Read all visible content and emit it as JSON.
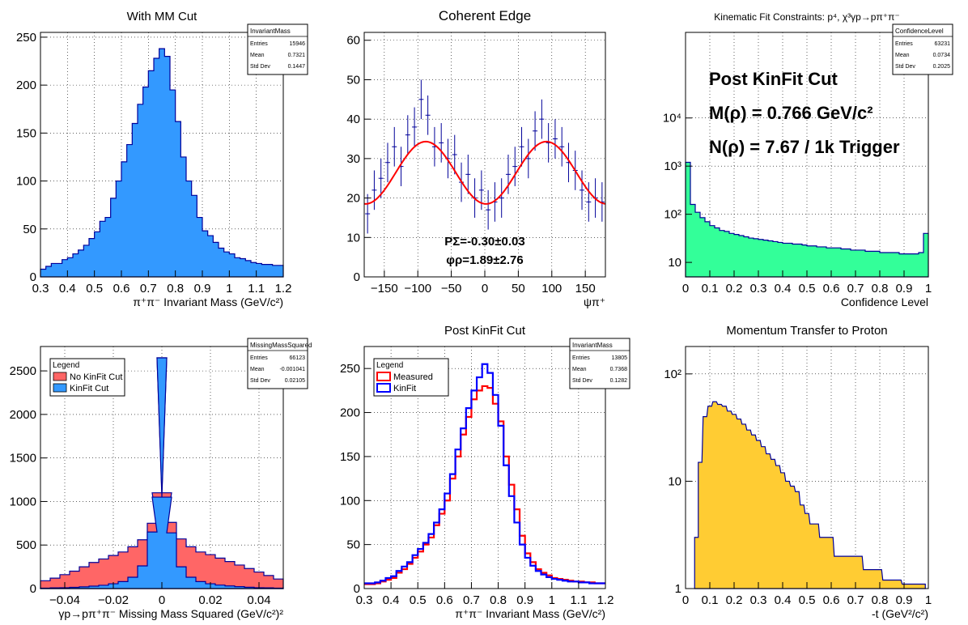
{
  "page": {
    "background": "#ffffff"
  },
  "chart_data": [
    {
      "id": "p1",
      "type": "bar",
      "title": "With MM Cut",
      "xlabel": "π⁺π⁻ Invariant Mass (GeV/c²)",
      "ylabel": "",
      "xlim": [
        0.3,
        1.2
      ],
      "ylim": [
        0,
        255
      ],
      "xticks": [
        0.3,
        0.4,
        0.5,
        0.6,
        0.7,
        0.8,
        0.9,
        1.0,
        1.1,
        1.2
      ],
      "xtick_labels": [
        "0.3",
        "0.4",
        "0.5",
        "0.6",
        "0.7",
        "0.8",
        "0.9",
        "1",
        "1.1",
        "1.2"
      ],
      "yticks": [
        0,
        50,
        100,
        150,
        200,
        250
      ],
      "ytick_labels": [
        "0",
        "50",
        "100",
        "150",
        "200",
        "250"
      ],
      "grid": true,
      "stats": {
        "name": "InvariantMass",
        "rows": [
          [
            "Entries",
            "15946"
          ],
          [
            "Mean",
            "0.7321"
          ],
          [
            "Std Dev",
            "0.1447"
          ]
        ],
        "placement": "top-right"
      },
      "series": [
        {
          "fill": "#3399ff",
          "line": "#000099",
          "x": [
            0.31,
            0.33,
            0.35,
            0.37,
            0.39,
            0.41,
            0.43,
            0.45,
            0.47,
            0.49,
            0.51,
            0.53,
            0.55,
            0.57,
            0.59,
            0.61,
            0.63,
            0.65,
            0.67,
            0.69,
            0.71,
            0.73,
            0.75,
            0.77,
            0.79,
            0.81,
            0.83,
            0.85,
            0.87,
            0.89,
            0.91,
            0.93,
            0.95,
            0.97,
            0.99,
            1.01,
            1.03,
            1.05,
            1.07,
            1.09,
            1.11,
            1.13,
            1.15,
            1.17,
            1.19
          ],
          "values": [
            8,
            11,
            14,
            14,
            18,
            20,
            24,
            28,
            33,
            40,
            47,
            58,
            62,
            82,
            100,
            120,
            138,
            160,
            180,
            198,
            215,
            228,
            238,
            230,
            195,
            162,
            125,
            100,
            85,
            62,
            48,
            43,
            36,
            30,
            26,
            24,
            20,
            19,
            17,
            15,
            14,
            13,
            13,
            12,
            12
          ]
        }
      ]
    },
    {
      "id": "p2",
      "type": "scatter",
      "title": "Coherent Edge",
      "xlabel": "ψπ⁺",
      "ylabel": "",
      "xlim": [
        -180,
        180
      ],
      "ylim": [
        0,
        62
      ],
      "xticks": [
        -150,
        -100,
        -50,
        0,
        50,
        100,
        150
      ],
      "xtick_labels": [
        "−150",
        "−100",
        "−50",
        "0",
        "50",
        "100",
        "150"
      ],
      "yticks": [
        0,
        10,
        20,
        30,
        40,
        50,
        60
      ],
      "ytick_labels": [
        "0",
        "10",
        "20",
        "30",
        "40",
        "50",
        "60"
      ],
      "grid": true,
      "annotations": [
        "PΣ=-0.30±0.03",
        "φρ=1.89±2.76"
      ],
      "points": {
        "color": "#000099",
        "errbar": 5,
        "x": [
          -175,
          -165,
          -155,
          -145,
          -135,
          -125,
          -115,
          -105,
          -95,
          -85,
          -75,
          -65,
          -55,
          -45,
          -35,
          -25,
          -15,
          -5,
          5,
          15,
          25,
          35,
          45,
          55,
          65,
          75,
          85,
          95,
          105,
          115,
          125,
          135,
          145,
          155,
          165,
          175
        ],
        "y": [
          16,
          22,
          25,
          29,
          33,
          28,
          36,
          38,
          45,
          41,
          33,
          34,
          30,
          31,
          24,
          26,
          20,
          22,
          17,
          19,
          20,
          26,
          28,
          33,
          30,
          37,
          40,
          34,
          35,
          33,
          29,
          27,
          22,
          19,
          20,
          19
        ]
      },
      "fit": {
        "color": "#ff0000",
        "offset": 26.4,
        "amplitude": 7.9,
        "phase_deg": 1.89
      }
    },
    {
      "id": "p3",
      "type": "bar",
      "title": "Kinematic Fit Constraints: p⁴, χ³γp→pπ⁺π⁻",
      "xlabel": "Confidence Level",
      "ylabel": "",
      "log_y": true,
      "xlim": [
        0,
        1
      ],
      "ylim": [
        5,
        600000
      ],
      "xticks": [
        0,
        0.1,
        0.2,
        0.3,
        0.4,
        0.5,
        0.6,
        0.7,
        0.8,
        0.9,
        1.0
      ],
      "xtick_labels": [
        "0",
        "0.1",
        "0.2",
        "0.3",
        "0.4",
        "0.5",
        "0.6",
        "0.7",
        "0.8",
        "0.9",
        "1"
      ],
      "yticks": [
        10,
        100,
        1000,
        10000
      ],
      "ytick_labels": [
        "10",
        "10²",
        "10³",
        "10⁴"
      ],
      "grid": true,
      "annotations": [
        "Post KinFit Cut",
        "M(ρ) = 0.766 GeV/c²",
        "N(ρ) = 7.67 / 1k Trigger"
      ],
      "stats": {
        "name": "ConfidenceLevel",
        "rows": [
          [
            "Entries",
            "63231"
          ],
          [
            "Mean",
            "0.0734"
          ],
          [
            "Std Dev",
            "0.2025"
          ]
        ],
        "placement": "top-right"
      },
      "series": [
        {
          "fill": "#33ff99",
          "line": "#000099",
          "x": [
            0.01,
            0.03,
            0.05,
            0.07,
            0.09,
            0.11,
            0.13,
            0.15,
            0.17,
            0.19,
            0.21,
            0.23,
            0.25,
            0.27,
            0.29,
            0.31,
            0.33,
            0.35,
            0.37,
            0.39,
            0.41,
            0.43,
            0.45,
            0.47,
            0.49,
            0.51,
            0.53,
            0.55,
            0.57,
            0.59,
            0.61,
            0.63,
            0.65,
            0.67,
            0.69,
            0.71,
            0.73,
            0.75,
            0.77,
            0.79,
            0.81,
            0.83,
            0.85,
            0.87,
            0.89,
            0.91,
            0.93,
            0.95,
            0.97,
            0.99
          ],
          "values": [
            1200,
            160,
            110,
            85,
            70,
            58,
            52,
            46,
            44,
            40,
            38,
            36,
            34,
            32,
            31,
            30,
            29,
            28,
            27,
            26,
            25,
            25,
            24,
            24,
            23,
            22,
            22,
            21,
            21,
            20,
            20,
            20,
            19,
            19,
            18,
            18,
            18,
            17,
            17,
            17,
            16,
            16,
            16,
            16,
            15,
            15,
            15,
            15,
            16,
            40
          ]
        }
      ]
    },
    {
      "id": "p4",
      "type": "bar",
      "title": "",
      "xlabel": "γp→pπ⁺π⁻ Missing Mass Squared (GeV/c²)²",
      "ylabel": "",
      "xlim": [
        -0.05,
        0.05
      ],
      "ylim": [
        0,
        2780
      ],
      "xticks": [
        -0.04,
        -0.02,
        0,
        0.02,
        0.04
      ],
      "xtick_labels": [
        "−0.04",
        "−0.02",
        "0",
        "0.02",
        "0.04"
      ],
      "yticks": [
        0,
        500,
        1000,
        1500,
        2000,
        2500
      ],
      "ytick_labels": [
        "0",
        "500",
        "1000",
        "1500",
        "2000",
        "2500"
      ],
      "grid": true,
      "legend": {
        "title": "Legend",
        "placement": "top-left",
        "entries": [
          {
            "label": "No KinFit Cut",
            "color": "#ff6666"
          },
          {
            "label": "KinFit Cut",
            "color": "#3399ff"
          }
        ]
      },
      "stats": {
        "name": "MissingMassSquared",
        "rows": [
          [
            "Entries",
            "66123"
          ],
          [
            "Mean",
            "-0.001041"
          ],
          [
            "Std Dev",
            "0.02105"
          ]
        ],
        "placement": "top-right"
      },
      "series": [
        {
          "name": "No KinFit Cut",
          "fill": "#ff6666",
          "line": "#000099",
          "x": [
            -0.048,
            -0.044,
            -0.04,
            -0.036,
            -0.032,
            -0.028,
            -0.024,
            -0.02,
            -0.016,
            -0.012,
            -0.008,
            -0.004,
            -0.002,
            0,
            0.002,
            0.004,
            0.008,
            0.012,
            0.016,
            0.02,
            0.024,
            0.028,
            0.032,
            0.036,
            0.04,
            0.044,
            0.048
          ],
          "values": [
            90,
            120,
            160,
            200,
            250,
            300,
            340,
            380,
            420,
            480,
            560,
            750,
            1100,
            2650,
            1100,
            760,
            570,
            480,
            420,
            390,
            350,
            310,
            270,
            230,
            190,
            150,
            110
          ]
        },
        {
          "name": "KinFit Cut",
          "fill": "#3399ff",
          "line": "#000099",
          "x": [
            -0.048,
            -0.044,
            -0.04,
            -0.036,
            -0.032,
            -0.028,
            -0.024,
            -0.02,
            -0.016,
            -0.012,
            -0.008,
            -0.004,
            -0.002,
            0,
            0.002,
            0.004,
            0.008,
            0.012,
            0.016,
            0.02,
            0.024,
            0.028,
            0.032,
            0.036,
            0.04,
            0.044,
            0.048
          ],
          "values": [
            5,
            8,
            10,
            14,
            20,
            28,
            38,
            55,
            80,
            130,
            260,
            650,
            1050,
            2650,
            1050,
            640,
            250,
            130,
            80,
            55,
            40,
            30,
            22,
            15,
            10,
            8,
            5
          ]
        }
      ]
    },
    {
      "id": "p5",
      "type": "line",
      "title": "Post KinFit Cut",
      "xlabel": "π⁺π⁻ Invariant Mass (GeV/c²)",
      "ylabel": "",
      "xlim": [
        0.3,
        1.2
      ],
      "ylim": [
        0,
        275
      ],
      "xticks": [
        0.3,
        0.4,
        0.5,
        0.6,
        0.7,
        0.8,
        0.9,
        1.0,
        1.1,
        1.2
      ],
      "xtick_labels": [
        "0.3",
        "0.4",
        "0.5",
        "0.6",
        "0.7",
        "0.8",
        "0.9",
        "1",
        "1.1",
        "1.2"
      ],
      "yticks": [
        0,
        50,
        100,
        150,
        200,
        250
      ],
      "ytick_labels": [
        "0",
        "50",
        "100",
        "150",
        "200",
        "250"
      ],
      "grid": true,
      "legend": {
        "title": "Legend",
        "placement": "top-left",
        "entries": [
          {
            "label": "Measured",
            "color": "#ff0000"
          },
          {
            "label": "KinFit",
            "color": "#0000ff"
          }
        ]
      },
      "stats": {
        "name": "InvariantMass",
        "rows": [
          [
            "Entries",
            "13805"
          ],
          [
            "Mean",
            "0.7368"
          ],
          [
            "Std Dev",
            "0.1282"
          ]
        ],
        "placement": "top-right"
      },
      "series": [
        {
          "name": "Measured",
          "color": "#ff0000",
          "x": [
            0.31,
            0.33,
            0.35,
            0.37,
            0.39,
            0.41,
            0.43,
            0.45,
            0.47,
            0.49,
            0.51,
            0.53,
            0.55,
            0.57,
            0.59,
            0.61,
            0.63,
            0.65,
            0.67,
            0.69,
            0.71,
            0.73,
            0.75,
            0.77,
            0.79,
            0.81,
            0.83,
            0.85,
            0.87,
            0.89,
            0.91,
            0.93,
            0.95,
            0.97,
            0.99,
            1.01,
            1.03,
            1.05,
            1.07,
            1.09,
            1.11,
            1.13,
            1.15,
            1.17,
            1.19
          ],
          "values": [
            5,
            5,
            6,
            8,
            10,
            12,
            18,
            22,
            28,
            35,
            42,
            50,
            58,
            72,
            85,
            100,
            125,
            150,
            175,
            195,
            215,
            225,
            230,
            228,
            210,
            190,
            150,
            118,
            90,
            60,
            40,
            30,
            22,
            18,
            15,
            12,
            11,
            10,
            9,
            8,
            8,
            7,
            7,
            6,
            6
          ]
        },
        {
          "name": "KinFit",
          "color": "#0000ff",
          "x": [
            0.31,
            0.33,
            0.35,
            0.37,
            0.39,
            0.41,
            0.43,
            0.45,
            0.47,
            0.49,
            0.51,
            0.53,
            0.55,
            0.57,
            0.59,
            0.61,
            0.63,
            0.65,
            0.67,
            0.69,
            0.71,
            0.73,
            0.75,
            0.77,
            0.79,
            0.81,
            0.83,
            0.85,
            0.87,
            0.89,
            0.91,
            0.93,
            0.95,
            0.97,
            0.99,
            1.01,
            1.03,
            1.05,
            1.07,
            1.09,
            1.11,
            1.13,
            1.15,
            1.17,
            1.19
          ],
          "values": [
            6,
            6,
            7,
            9,
            12,
            14,
            20,
            25,
            30,
            38,
            45,
            52,
            62,
            75,
            90,
            108,
            130,
            158,
            182,
            205,
            225,
            240,
            255,
            245,
            220,
            185,
            140,
            105,
            75,
            50,
            35,
            26,
            20,
            16,
            13,
            11,
            10,
            9,
            8,
            8,
            7,
            7,
            6,
            6,
            6
          ]
        }
      ]
    },
    {
      "id": "p6",
      "type": "bar",
      "title": "Momentum Transfer to Proton",
      "xlabel": "-t (GeV²/c²)",
      "ylabel": "",
      "log_y": true,
      "xlim": [
        0,
        1
      ],
      "ylim": [
        1,
        180
      ],
      "xticks": [
        0,
        0.1,
        0.2,
        0.3,
        0.4,
        0.5,
        0.6,
        0.7,
        0.8,
        0.9,
        1.0
      ],
      "xtick_labels": [
        "0",
        "0.1",
        "0.2",
        "0.3",
        "0.4",
        "0.5",
        "0.6",
        "0.7",
        "0.8",
        "0.9",
        "1"
      ],
      "yticks": [
        1,
        10,
        100
      ],
      "ytick_labels": [
        "1",
        "10",
        "10²"
      ],
      "grid": true,
      "series": [
        {
          "fill": "#ffcc33",
          "line": "#000099",
          "x": [
            0.045,
            0.06,
            0.08,
            0.1,
            0.12,
            0.14,
            0.16,
            0.18,
            0.2,
            0.22,
            0.24,
            0.26,
            0.28,
            0.3,
            0.32,
            0.34,
            0.36,
            0.38,
            0.4,
            0.42,
            0.44,
            0.46,
            0.48,
            0.5,
            0.52,
            0.54,
            0.56,
            0.58,
            0.6,
            0.62,
            0.64,
            0.66,
            0.68,
            0.7,
            0.72,
            0.74,
            0.76,
            0.78,
            0.8,
            0.82,
            0.84,
            0.86,
            0.88,
            0.9,
            0.92,
            0.94,
            0.96,
            0.98
          ],
          "values": [
            3,
            15,
            40,
            50,
            55,
            52,
            50,
            45,
            42,
            38,
            34,
            30,
            27,
            24,
            21,
            18,
            16,
            14,
            12,
            10,
            9,
            8,
            6,
            5,
            4,
            4,
            3,
            3,
            3,
            2,
            2,
            2,
            2,
            2,
            2,
            1.5,
            1.5,
            1.5,
            1.5,
            1.2,
            1.2,
            1.2,
            1.2,
            1.1,
            1.1,
            1.1,
            1.1,
            1.1
          ]
        }
      ]
    }
  ]
}
